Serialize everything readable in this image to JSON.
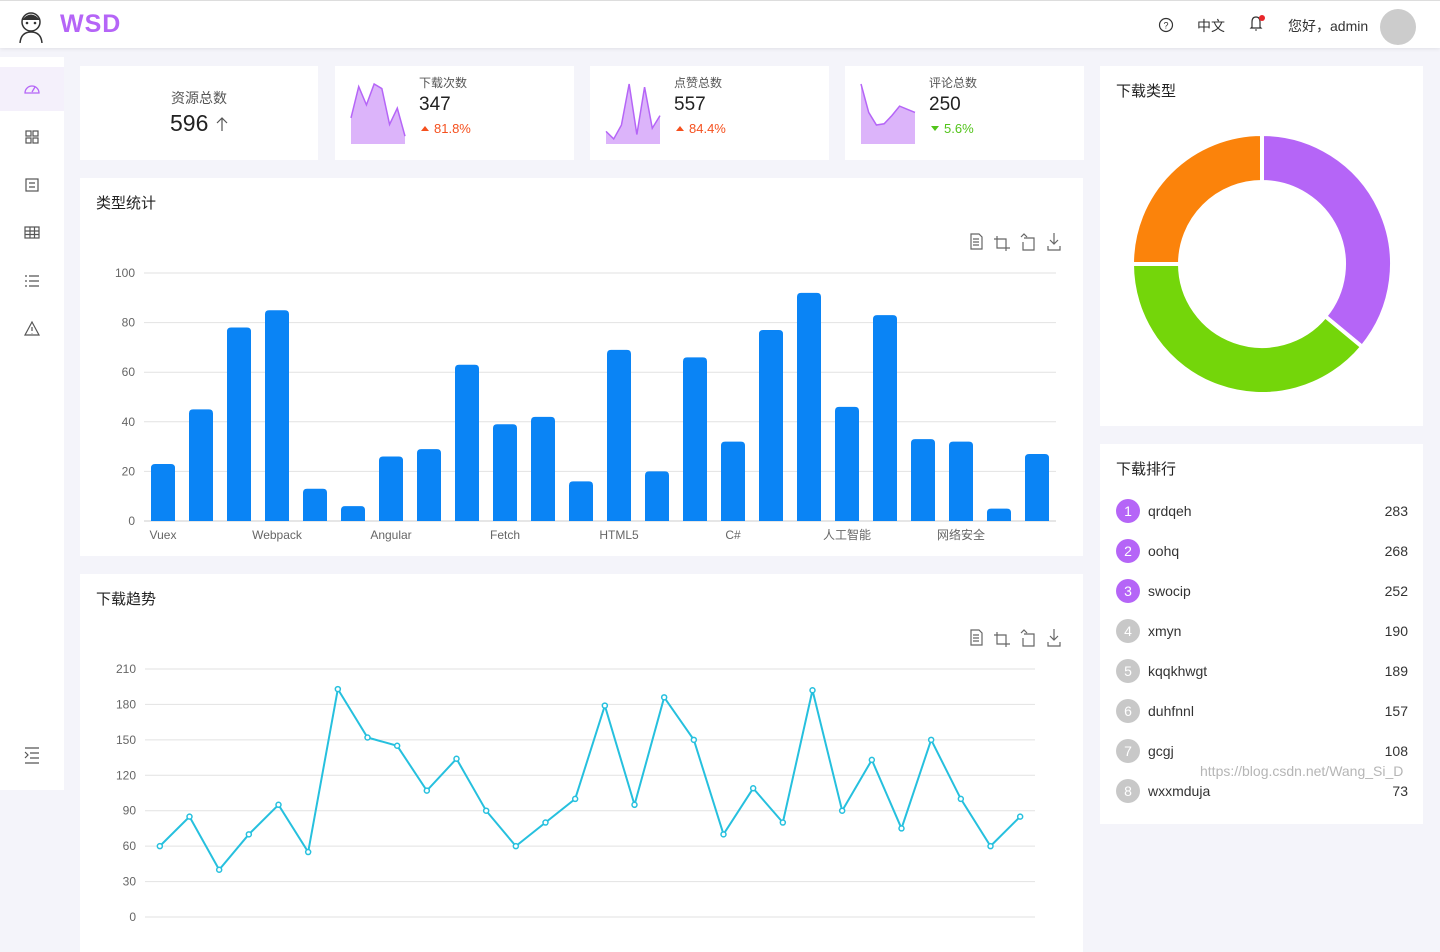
{
  "header": {
    "brand": "WSD",
    "language": "中文",
    "greeting": "您好，admin"
  },
  "resource": {
    "label": "资源总数",
    "value": 596
  },
  "stat_cards": [
    {
      "label": "下载次数",
      "value": 347,
      "change": "81.8%",
      "trend": "up",
      "sparkline": [
        40,
        88,
        60,
        92,
        85,
        30,
        55,
        12
      ]
    },
    {
      "label": "点赞总数",
      "value": 557,
      "change": "84.4%",
      "trend": "up",
      "sparkline": [
        20,
        8,
        30,
        95,
        15,
        90,
        25,
        45
      ]
    },
    {
      "label": "评论总数",
      "value": 250,
      "change": "5.6%",
      "trend": "down",
      "sparkline": [
        95,
        50,
        30,
        32,
        45,
        60,
        55,
        50
      ]
    }
  ],
  "chart_data": [
    {
      "type": "bar",
      "title": "类型统计",
      "color": "#0a84f5",
      "grid": true,
      "categories": [
        "Vuex",
        null,
        null,
        "Webpack",
        null,
        null,
        "Angular",
        null,
        null,
        "Fetch",
        null,
        null,
        "HTML5",
        null,
        null,
        "C#",
        null,
        null,
        "人工智能",
        null,
        null,
        "网络安全",
        null,
        null
      ],
      "values": [
        23,
        45,
        78,
        85,
        13,
        6,
        26,
        29,
        63,
        39,
        42,
        16,
        69,
        20,
        66,
        32,
        77,
        92,
        46,
        83,
        33,
        32,
        5,
        27
      ],
      "ylim": [
        0,
        100
      ],
      "yticks": [
        0,
        20,
        40,
        60,
        80,
        100
      ]
    },
    {
      "type": "line",
      "title": "下载趋势",
      "color": "#26c0de",
      "grid": true,
      "values": [
        60,
        85,
        40,
        70,
        95,
        55,
        193,
        152,
        145,
        107,
        134,
        90,
        60,
        80,
        100,
        179,
        95,
        186,
        150,
        70,
        109,
        80,
        192,
        90,
        133,
        75,
        150,
        100,
        60,
        85
      ],
      "ylim": [
        0,
        210
      ],
      "yticks": [
        0,
        30,
        60,
        90,
        120,
        150,
        180,
        210
      ]
    },
    {
      "type": "pie",
      "title": "下载类型",
      "values": [
        36,
        39,
        25
      ],
      "colors": [
        "#b565f7",
        "#74d60a",
        "#fb830b"
      ]
    }
  ],
  "ranking": {
    "title": "下载排行",
    "items": [
      {
        "rank": 1,
        "name": "qrdqeh",
        "value": 283
      },
      {
        "rank": 2,
        "name": "oohq",
        "value": 268
      },
      {
        "rank": 3,
        "name": "swocip",
        "value": 252
      },
      {
        "rank": 4,
        "name": "xmyn",
        "value": 190
      },
      {
        "rank": 5,
        "name": "kqqkhwgt",
        "value": 189
      },
      {
        "rank": 6,
        "name": "duhfnnl",
        "value": 157
      },
      {
        "rank": 7,
        "name": "gcgj",
        "value": 108
      },
      {
        "rank": 8,
        "name": "wxxmduja",
        "value": 73
      }
    ]
  },
  "watermark": "https://blog.csdn.net/Wang_Si_D"
}
